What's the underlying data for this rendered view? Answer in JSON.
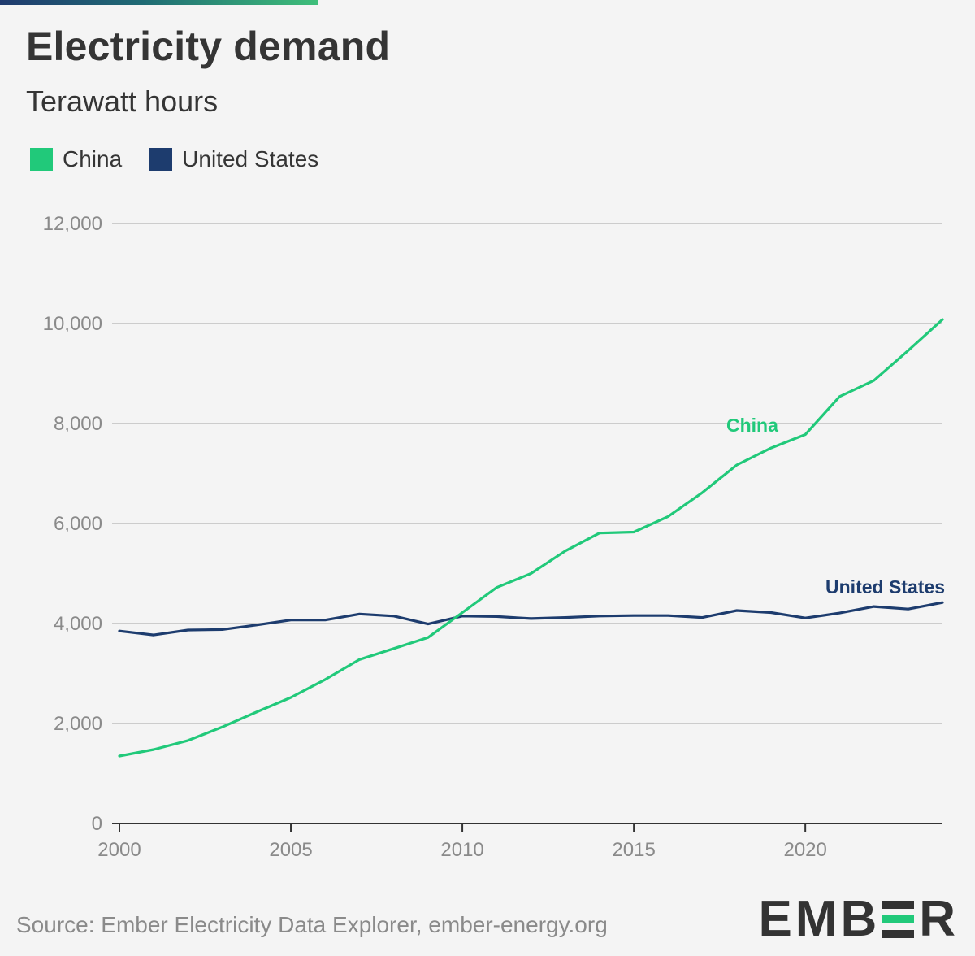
{
  "header": {
    "title": "Electricity demand",
    "subtitle": "Terawatt hours"
  },
  "legend": [
    {
      "label": "China",
      "color": "#21c97a"
    },
    {
      "label": "United States",
      "color": "#1d3c6e"
    }
  ],
  "footer": {
    "source": "Source: Ember Electricity Data Explorer, ember-energy.org",
    "logo_left": "EMB",
    "logo_right": "R",
    "logo_e_colors": [
      "#333333",
      "#21c97a",
      "#333333"
    ]
  },
  "chart_data": {
    "type": "line",
    "x": [
      2000,
      2001,
      2002,
      2003,
      2004,
      2005,
      2006,
      2007,
      2008,
      2009,
      2010,
      2011,
      2012,
      2013,
      2014,
      2015,
      2016,
      2017,
      2018,
      2019,
      2020,
      2021,
      2022,
      2023,
      2024
    ],
    "series": [
      {
        "name": "China",
        "color": "#21c97a",
        "values": [
          1350,
          1480,
          1660,
          1930,
          2230,
          2520,
          2880,
          3280,
          3500,
          3720,
          4220,
          4720,
          5000,
          5450,
          5810,
          5830,
          6140,
          6620,
          7170,
          7510,
          7780,
          8540,
          8860,
          9460,
          10080
        ]
      },
      {
        "name": "United States",
        "color": "#1d3c6e",
        "values": [
          3850,
          3770,
          3870,
          3880,
          3970,
          4070,
          4070,
          4190,
          4150,
          3990,
          4150,
          4140,
          4100,
          4120,
          4150,
          4160,
          4160,
          4120,
          4260,
          4220,
          4110,
          4210,
          4340,
          4290,
          4420
        ]
      }
    ],
    "series_labels": [
      "China",
      "United States"
    ],
    "y_ticks": [
      "0",
      "2,000",
      "4,000",
      "6,000",
      "8,000",
      "10,000",
      "12,000"
    ],
    "y_tick_values": [
      0,
      2000,
      4000,
      6000,
      8000,
      10000,
      12000
    ],
    "x_ticks": [
      "2000",
      "2005",
      "2010",
      "2015",
      "2020"
    ],
    "x_tick_values": [
      2000,
      2005,
      2010,
      2015,
      2020
    ],
    "xlim": [
      2000,
      2024
    ],
    "ylim": [
      0,
      12000
    ],
    "grid": true,
    "grid_color": "#cccccc",
    "axis_color": "#333333",
    "tick_label_color": "#8a8a8a",
    "legend_placement": "top-left"
  }
}
